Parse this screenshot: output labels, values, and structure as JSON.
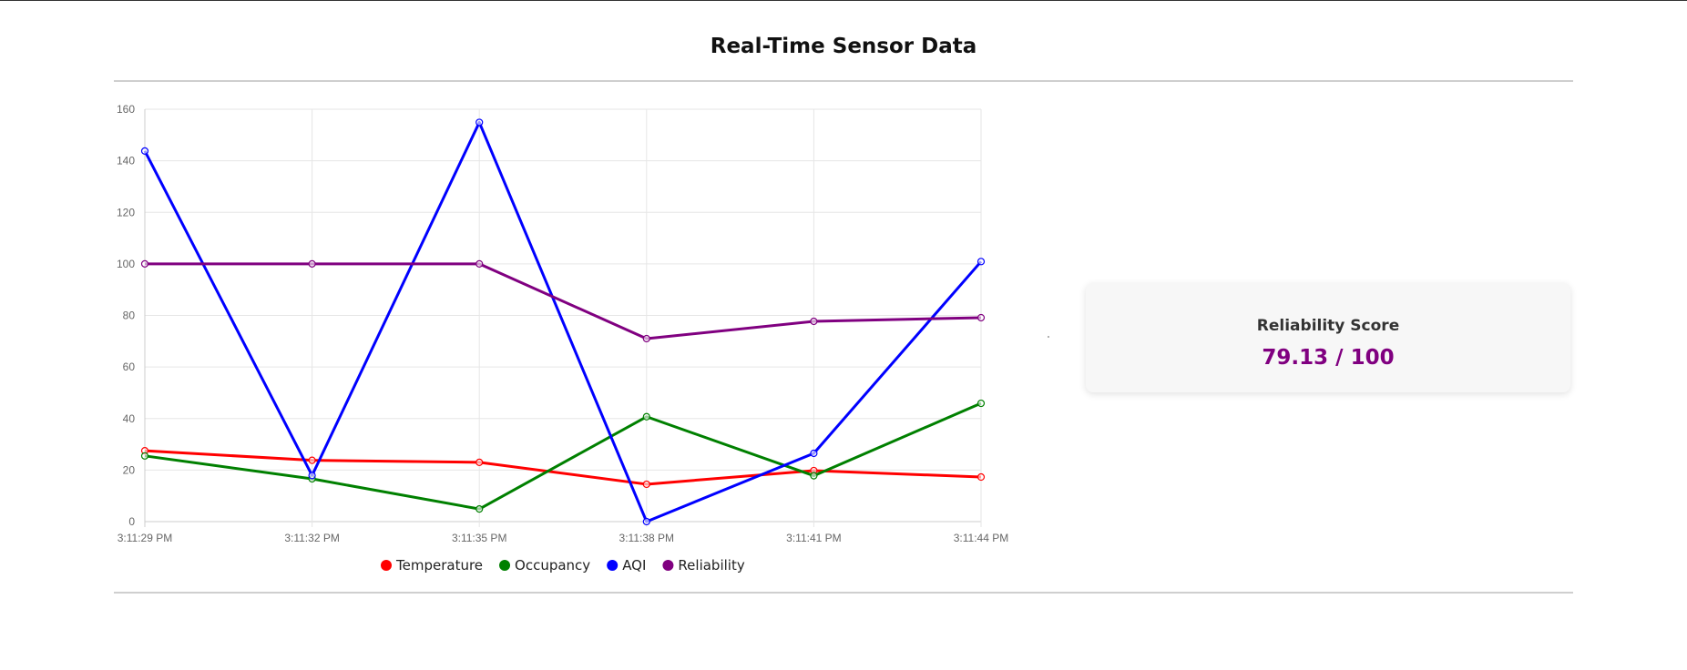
{
  "page": {
    "title": "Real-Time Sensor Data"
  },
  "reliability_card": {
    "title": "Reliability Score",
    "value": "79.13 / 100"
  },
  "chart_data": {
    "type": "line",
    "title": "",
    "xlabel": "",
    "ylabel": "",
    "categories": [
      "3:11:29 PM",
      "3:11:32 PM",
      "3:11:35 PM",
      "3:11:38 PM",
      "3:11:41 PM",
      "3:11:44 PM"
    ],
    "ylim": [
      0,
      160
    ],
    "yticks": [
      0,
      20,
      40,
      60,
      80,
      100,
      120,
      140,
      160
    ],
    "grid": true,
    "legend_position": "bottom",
    "series": [
      {
        "name": "Temperature",
        "color": "#ff0000",
        "values": [
          27.5,
          23.8,
          23.0,
          14.5,
          19.8,
          17.3
        ]
      },
      {
        "name": "Occupancy",
        "color": "#008000",
        "values": [
          25.5,
          16.6,
          4.9,
          40.7,
          17.8,
          45.9
        ]
      },
      {
        "name": "AQI",
        "color": "#0000ff",
        "values": [
          143.8,
          17.9,
          154.9,
          0.0,
          26.5,
          100.9
        ]
      },
      {
        "name": "Reliability",
        "color": "#800080",
        "values": [
          100,
          100,
          100,
          71.0,
          77.7,
          79.13
        ]
      }
    ]
  }
}
